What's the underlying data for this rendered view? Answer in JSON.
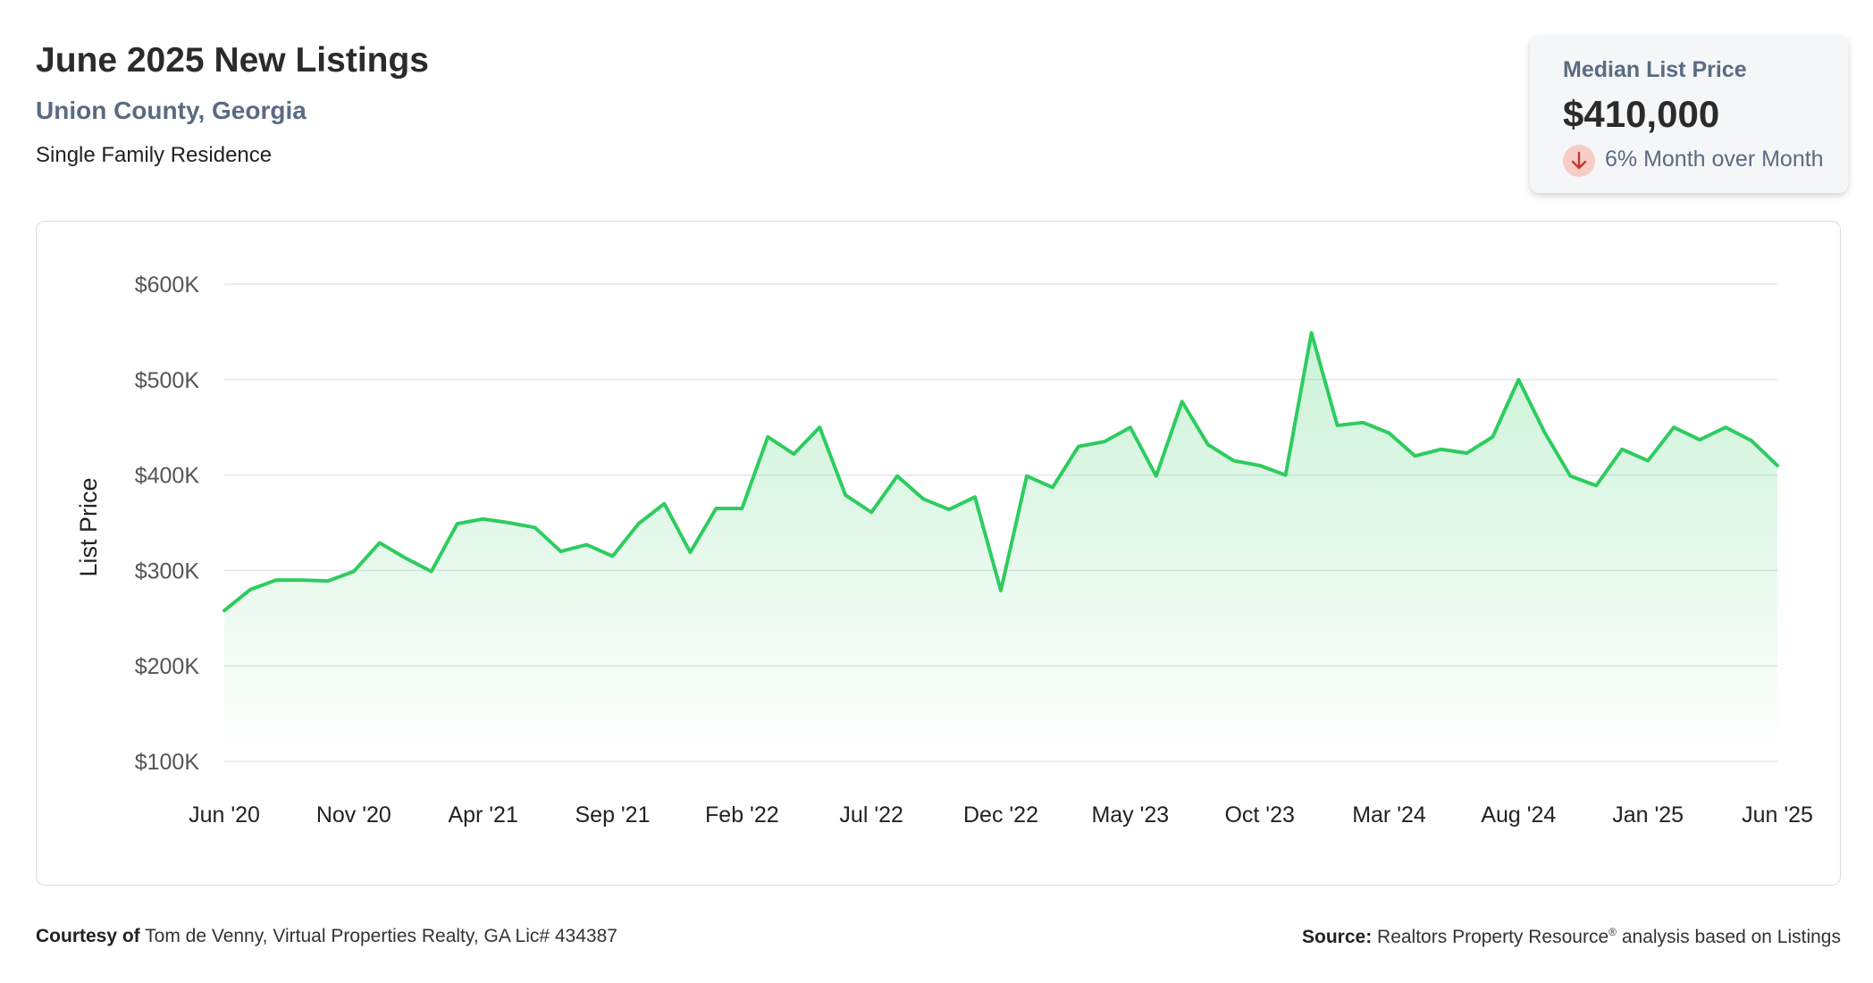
{
  "header": {
    "title": "June 2025 New Listings",
    "subtitle": "Union County, Georgia",
    "property_type": "Single Family Residence"
  },
  "kpi": {
    "label": "Median List Price",
    "value": "$410,000",
    "change_text": "6% Month over Month",
    "change_icon": "arrow-down-icon",
    "change_color": "#c0392b"
  },
  "chart_data": {
    "type": "area",
    "ylabel": "List Price",
    "xlabel": "",
    "ylim": [
      100000,
      600000
    ],
    "yticks": [
      {
        "value": 600000,
        "label": "$600K"
      },
      {
        "value": 500000,
        "label": "$500K"
      },
      {
        "value": 400000,
        "label": "$400K"
      },
      {
        "value": 300000,
        "label": "$300K"
      },
      {
        "value": 200000,
        "label": "$200K"
      },
      {
        "value": 100000,
        "label": "$100K"
      }
    ],
    "xticks": [
      {
        "index": 0,
        "label": "Jun '20"
      },
      {
        "index": 5,
        "label": "Nov '20"
      },
      {
        "index": 10,
        "label": "Apr '21"
      },
      {
        "index": 15,
        "label": "Sep '21"
      },
      {
        "index": 20,
        "label": "Feb '22"
      },
      {
        "index": 25,
        "label": "Jul '22"
      },
      {
        "index": 30,
        "label": "Dec '22"
      },
      {
        "index": 35,
        "label": "May '23"
      },
      {
        "index": 40,
        "label": "Oct '23"
      },
      {
        "index": 45,
        "label": "Mar '24"
      },
      {
        "index": 50,
        "label": "Aug '24"
      },
      {
        "index": 55,
        "label": "Jan '25"
      },
      {
        "index": 60,
        "label": "Jun '25"
      }
    ],
    "grid": true,
    "line_color": "#2ecc5f",
    "fill_color": "#2ecc5f",
    "series": [
      {
        "values": [
          258000,
          280000,
          290000,
          290000,
          289000,
          299000,
          329000,
          313000,
          299000,
          349000,
          354000,
          350000,
          345000,
          320000,
          327000,
          315000,
          349000,
          370000,
          319000,
          365000,
          365000,
          440000,
          422000,
          450000,
          379000,
          361000,
          399000,
          375000,
          364000,
          377000,
          279000,
          399000,
          387000,
          430000,
          435000,
          450000,
          399000,
          477000,
          432000,
          415000,
          410000,
          400000,
          549000,
          452000,
          455000,
          444000,
          420000,
          427000,
          423000,
          440000,
          500000,
          445000,
          399000,
          389000,
          427000,
          415000,
          450000,
          437000,
          450000,
          436000,
          410000
        ]
      }
    ]
  },
  "footer": {
    "courtesy_label": "Courtesy of",
    "courtesy_text": " Tom de Venny, Virtual Properties Realty, GA Lic# 434387",
    "source_label": "Source:",
    "source_text": " Realtors Property Resource",
    "source_mark": "®",
    "source_suffix": " analysis based on Listings"
  }
}
